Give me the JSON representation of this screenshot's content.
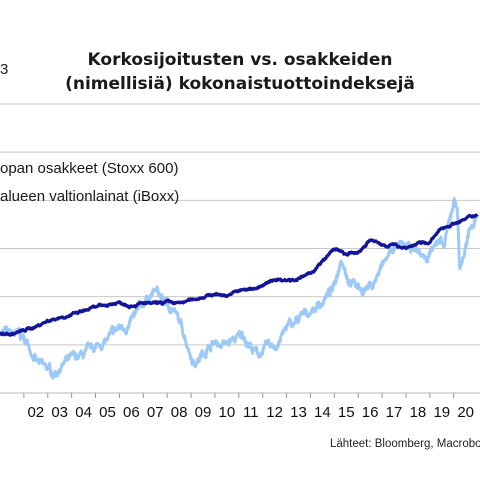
{
  "chart_data": {
    "type": "line",
    "title_lines": [
      "Korkosijoitusten vs. osakkeiden",
      "(nimellisiä) kokonaistuottoindeksejä"
    ],
    "y_axis_fragment": "3",
    "legend": [
      "opan osakkeet (Stoxx 600)",
      "alueen valtionlainat (iBoxx)"
    ],
    "source": "Lähteet: Bloomberg, Macrobo",
    "colors": {
      "bonds": "#13149a",
      "equities": "#9cc9f5",
      "grid": "#c8c8c8"
    },
    "x_tick_labels": [
      "02",
      "03",
      "04",
      "05",
      "06",
      "07",
      "08",
      "09",
      "10",
      "11",
      "12",
      "13",
      "14",
      "15",
      "16",
      "17",
      "18",
      "19",
      "20"
    ],
    "x_range": [
      2001.0,
      2021.1
    ],
    "y_range": [
      0,
      6
    ],
    "series": [
      {
        "name": "alueen valtionlainat (iBoxx)",
        "role": "bonds",
        "x": [
          2001.0,
          2001.5,
          2002.0,
          2002.5,
          2003.0,
          2003.5,
          2004.0,
          2004.5,
          2005.0,
          2005.5,
          2006.0,
          2006.5,
          2007.0,
          2007.5,
          2008.0,
          2008.5,
          2009.0,
          2009.5,
          2010.0,
          2010.5,
          2011.0,
          2011.5,
          2012.0,
          2012.5,
          2013.0,
          2013.5,
          2014.0,
          2014.5,
          2015.0,
          2015.5,
          2016.0,
          2016.5,
          2017.0,
          2017.5,
          2018.0,
          2018.5,
          2019.0,
          2019.5,
          2020.0,
          2020.5,
          2021.0
        ],
        "y": [
          1.22,
          1.22,
          1.3,
          1.38,
          1.5,
          1.57,
          1.62,
          1.7,
          1.78,
          1.83,
          1.88,
          1.82,
          1.86,
          1.85,
          1.88,
          1.86,
          1.93,
          2.0,
          2.05,
          2.03,
          2.12,
          2.16,
          2.22,
          2.36,
          2.35,
          2.37,
          2.48,
          2.72,
          3.0,
          2.87,
          2.92,
          3.18,
          3.07,
          3.07,
          3.02,
          3.1,
          3.13,
          3.42,
          3.52,
          3.61,
          3.72
        ]
      },
      {
        "name": "opan osakkeet (Stoxx 600)",
        "role": "equities",
        "x": [
          2001.0,
          2001.4,
          2001.8,
          2002.2,
          2002.6,
          2003.0,
          2003.25,
          2003.6,
          2004.0,
          2004.5,
          2005.0,
          2005.5,
          2006.0,
          2006.4,
          2006.8,
          2007.2,
          2007.5,
          2007.9,
          2008.3,
          2008.7,
          2009.0,
          2009.2,
          2009.6,
          2010.0,
          2010.4,
          2010.8,
          2011.2,
          2011.6,
          2011.8,
          2012.2,
          2012.6,
          2013.0,
          2013.5,
          2014.0,
          2014.5,
          2015.0,
          2015.3,
          2015.6,
          2016.0,
          2016.2,
          2016.6,
          2017.0,
          2017.5,
          2018.0,
          2018.5,
          2018.9,
          2019.2,
          2019.6,
          2020.0,
          2020.15,
          2020.25,
          2020.6,
          2021.0
        ],
        "y": [
          1.3,
          1.2,
          1.22,
          1.0,
          0.6,
          0.5,
          0.4,
          0.58,
          0.7,
          0.78,
          0.95,
          1.1,
          1.35,
          1.4,
          1.7,
          2.0,
          2.12,
          1.9,
          1.7,
          1.25,
          0.8,
          0.62,
          0.9,
          1.05,
          1.0,
          1.1,
          1.2,
          0.9,
          0.8,
          0.95,
          1.0,
          1.35,
          1.52,
          1.7,
          1.9,
          2.2,
          2.85,
          2.38,
          2.2,
          2.15,
          2.25,
          2.62,
          3.05,
          3.0,
          2.95,
          2.75,
          3.2,
          3.0,
          4.0,
          3.9,
          2.58,
          3.2,
          3.78
        ]
      }
    ]
  }
}
